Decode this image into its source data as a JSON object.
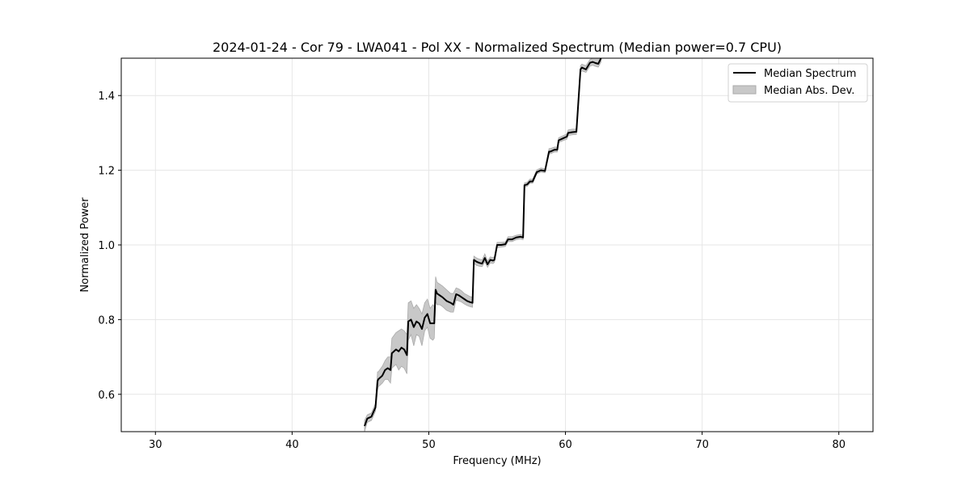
{
  "chart_data": {
    "type": "line",
    "title": "2024-01-24 - Cor 79 - LWA041 - Pol XX - Normalized Spectrum (Median power=0.7 CPU)",
    "xlabel": "Frequency (MHz)",
    "ylabel": "Normalized Power",
    "xlim": [
      27.5,
      82.5
    ],
    "ylim": [
      0.5,
      1.5
    ],
    "xticks": [
      30,
      40,
      50,
      60,
      70,
      80
    ],
    "yticks": [
      0.6,
      0.8,
      1.0,
      1.2,
      1.4
    ],
    "grid": true,
    "legend": "top-right",
    "series": [
      {
        "name": "Median Spectrum",
        "kind": "line",
        "color": "#000000",
        "x": [
          45.3,
          45.5,
          45.8,
          46.1,
          46.25,
          46.3,
          46.6,
          46.8,
          47.0,
          47.2,
          47.3,
          47.6,
          47.8,
          48.0,
          48.2,
          48.4,
          48.5,
          48.7,
          48.9,
          49.1,
          49.3,
          49.5,
          49.7,
          49.9,
          50.1,
          50.3,
          50.4,
          50.5,
          50.6,
          50.8,
          51.0,
          51.3,
          51.6,
          51.8,
          52.0,
          52.2,
          52.4,
          52.6,
          52.8,
          53.0,
          53.2,
          53.3,
          53.5,
          53.7,
          53.9,
          54.1,
          54.3,
          54.5,
          54.7,
          54.8,
          55.0,
          55.3,
          55.6,
          55.8,
          56.1,
          56.4,
          56.7,
          56.9,
          57.0,
          57.2,
          57.4,
          57.6,
          57.9,
          58.2,
          58.5,
          58.8,
          58.9,
          59.2,
          59.4,
          59.5,
          59.8,
          60.1,
          60.2,
          60.5,
          60.8,
          61.1,
          61.2,
          61.5,
          61.8,
          62.0,
          62.2,
          62.4,
          62.6
        ],
        "y": [
          0.515,
          0.535,
          0.54,
          0.565,
          0.635,
          0.64,
          0.65,
          0.665,
          0.67,
          0.665,
          0.71,
          0.72,
          0.715,
          0.725,
          0.72,
          0.705,
          0.795,
          0.8,
          0.78,
          0.795,
          0.79,
          0.775,
          0.805,
          0.815,
          0.79,
          0.79,
          0.79,
          0.88,
          0.87,
          0.865,
          0.86,
          0.85,
          0.845,
          0.84,
          0.868,
          0.865,
          0.86,
          0.855,
          0.85,
          0.847,
          0.845,
          0.96,
          0.955,
          0.952,
          0.95,
          0.965,
          0.948,
          0.96,
          0.958,
          0.96,
          1.0,
          1.0,
          1.002,
          1.015,
          1.015,
          1.02,
          1.022,
          1.02,
          1.16,
          1.162,
          1.17,
          1.17,
          1.195,
          1.2,
          1.198,
          1.25,
          1.25,
          1.255,
          1.255,
          1.28,
          1.285,
          1.29,
          1.3,
          1.302,
          1.303,
          1.47,
          1.475,
          1.47,
          1.488,
          1.49,
          1.487,
          1.485,
          1.5
        ]
      },
      {
        "name": "Median Abs. Dev.",
        "kind": "band",
        "color": "#c8c8c8",
        "x": [
          45.3,
          45.5,
          45.8,
          46.1,
          46.25,
          46.3,
          46.6,
          46.8,
          47.0,
          47.2,
          47.3,
          47.6,
          47.8,
          48.0,
          48.2,
          48.4,
          48.5,
          48.7,
          48.9,
          49.1,
          49.3,
          49.5,
          49.7,
          49.9,
          50.1,
          50.3,
          50.4,
          50.5,
          50.6,
          50.8,
          51.0,
          51.3,
          51.6,
          51.8,
          52.0,
          52.2,
          52.4,
          52.6,
          52.8,
          53.0,
          53.2,
          53.3,
          53.5,
          53.7,
          53.9,
          54.1,
          54.3,
          54.5,
          54.7,
          54.8,
          55.0,
          55.3,
          55.6,
          55.8,
          56.1,
          56.4,
          56.7,
          56.9,
          57.0,
          57.2,
          57.4,
          57.6,
          57.9,
          58.2,
          58.5,
          58.8,
          58.9,
          59.2,
          59.4,
          59.5,
          59.8,
          60.1,
          60.2,
          60.5,
          60.8,
          61.1,
          61.2,
          61.5,
          61.8,
          62.0,
          62.2,
          62.4,
          62.6
        ],
        "lower": [
          0.5,
          0.525,
          0.53,
          0.555,
          0.61,
          0.62,
          0.63,
          0.64,
          0.64,
          0.63,
          0.67,
          0.68,
          0.665,
          0.675,
          0.67,
          0.655,
          0.745,
          0.76,
          0.73,
          0.76,
          0.755,
          0.73,
          0.77,
          0.78,
          0.75,
          0.745,
          0.75,
          0.85,
          0.84,
          0.84,
          0.835,
          0.825,
          0.82,
          0.82,
          0.852,
          0.85,
          0.847,
          0.842,
          0.838,
          0.835,
          0.833,
          0.95,
          0.945,
          0.943,
          0.942,
          0.955,
          0.94,
          0.952,
          0.95,
          0.953,
          0.993,
          0.994,
          0.996,
          1.009,
          1.009,
          1.014,
          1.016,
          1.014,
          1.155,
          1.157,
          1.165,
          1.165,
          1.19,
          1.195,
          1.193,
          1.244,
          1.244,
          1.249,
          1.249,
          1.274,
          1.279,
          1.283,
          1.293,
          1.295,
          1.296,
          1.462,
          1.466,
          1.462,
          1.479,
          1.481,
          1.478,
          1.476,
          1.49
        ],
        "upper": [
          0.53,
          0.545,
          0.55,
          0.575,
          0.66,
          0.66,
          0.675,
          0.69,
          0.7,
          0.7,
          0.75,
          0.765,
          0.77,
          0.775,
          0.77,
          0.76,
          0.845,
          0.85,
          0.83,
          0.84,
          0.83,
          0.815,
          0.845,
          0.855,
          0.83,
          0.84,
          0.835,
          0.915,
          0.9,
          0.895,
          0.89,
          0.88,
          0.87,
          0.87,
          0.885,
          0.882,
          0.877,
          0.87,
          0.866,
          0.862,
          0.86,
          0.97,
          0.965,
          0.962,
          0.96,
          0.976,
          0.957,
          0.968,
          0.966,
          0.968,
          1.007,
          1.007,
          1.008,
          1.022,
          1.022,
          1.026,
          1.028,
          1.026,
          1.166,
          1.168,
          1.176,
          1.176,
          1.201,
          1.206,
          1.204,
          1.258,
          1.258,
          1.262,
          1.262,
          1.287,
          1.292,
          1.297,
          1.308,
          1.31,
          1.31,
          1.48,
          1.484,
          1.48,
          1.497,
          1.5,
          1.5,
          1.5,
          1.5
        ]
      }
    ]
  }
}
